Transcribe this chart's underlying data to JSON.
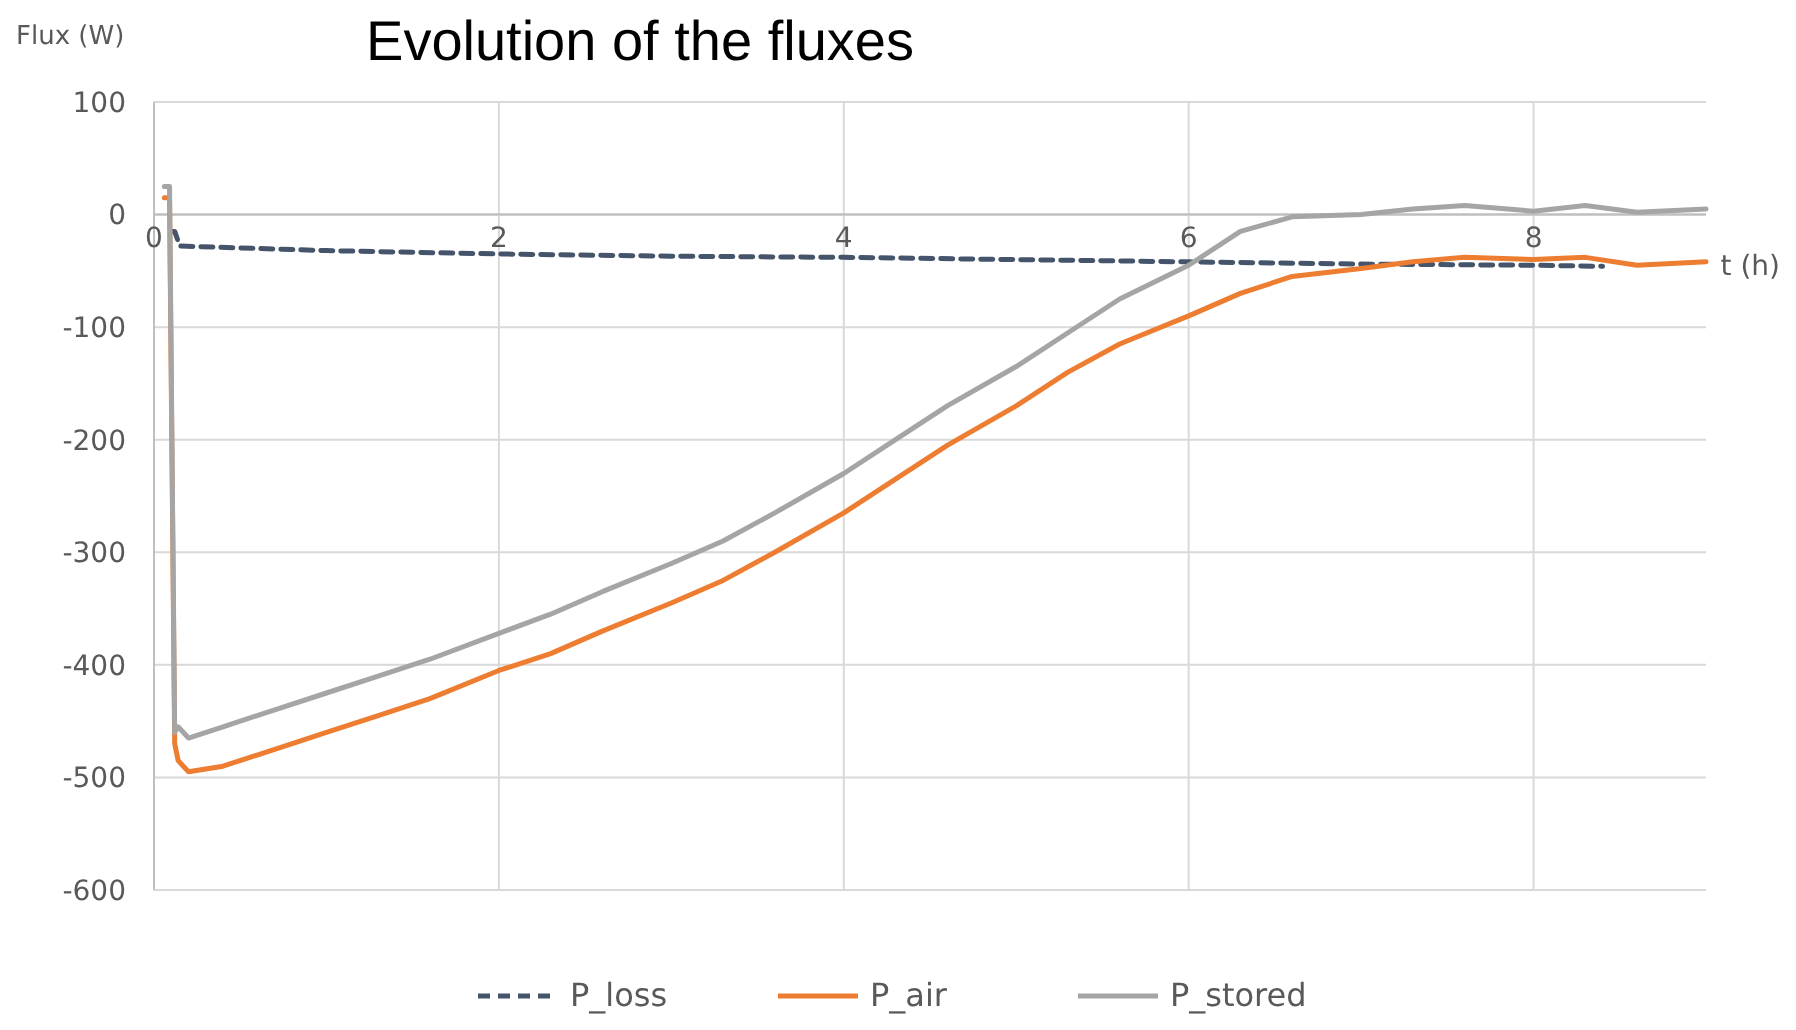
{
  "chart_data": {
    "type": "line",
    "title": "Evolution of the fluxes",
    "xlabel": "t (h)",
    "ylabel": "Flux (W)",
    "x": [
      0.06,
      0.09,
      0.12,
      0.14,
      0.2,
      0.4,
      0.7,
      1,
      1.3,
      1.6,
      2,
      2.3,
      2.6,
      3,
      3.3,
      3.6,
      4,
      4.3,
      4.6,
      5,
      5.3,
      5.6,
      6,
      6.3,
      6.6,
      7,
      7.3,
      7.6,
      8,
      8.3,
      8.6,
      9
    ],
    "series": [
      {
        "name": "P_loss",
        "color": "#44546a",
        "line_style": "dashed",
        "x": [
          0.1,
          0.12,
          0.15,
          1,
          2,
          3,
          4,
          5,
          6,
          7,
          8,
          8.4
        ],
        "values": [
          -15,
          -15,
          -28,
          -32,
          -35,
          -37,
          -38,
          -40,
          -42,
          -44,
          -45,
          -46
        ]
      },
      {
        "name": "P_air",
        "color": "#ed7d31",
        "line_style": "solid",
        "values": [
          15,
          15,
          -470,
          -485,
          -495,
          -490,
          -475,
          -460,
          -445,
          -430,
          -405,
          -390,
          -370,
          -345,
          -325,
          -300,
          -265,
          -235,
          -205,
          -170,
          -140,
          -115,
          -90,
          -70,
          -55,
          -48,
          -42,
          -38,
          -40,
          -38,
          -45,
          -42
        ]
      },
      {
        "name": "P_stored",
        "color": "#a5a5a5",
        "line_style": "solid",
        "values": [
          25,
          25,
          -460,
          -455,
          -465,
          -455,
          -440,
          -425,
          -410,
          -395,
          -372,
          -355,
          -335,
          -310,
          -290,
          -265,
          -230,
          -200,
          -170,
          -135,
          -105,
          -75,
          -45,
          -15,
          -2,
          0,
          5,
          8,
          3,
          8,
          2,
          5
        ]
      }
    ],
    "xlim": [
      0,
      9
    ],
    "xticks": [
      0,
      2,
      4,
      6,
      8
    ],
    "ylim": [
      -600,
      100
    ],
    "yticks": [
      -600,
      -500,
      -400,
      -300,
      -200,
      -100,
      0,
      100
    ],
    "grid": true,
    "legend": "bottom"
  }
}
